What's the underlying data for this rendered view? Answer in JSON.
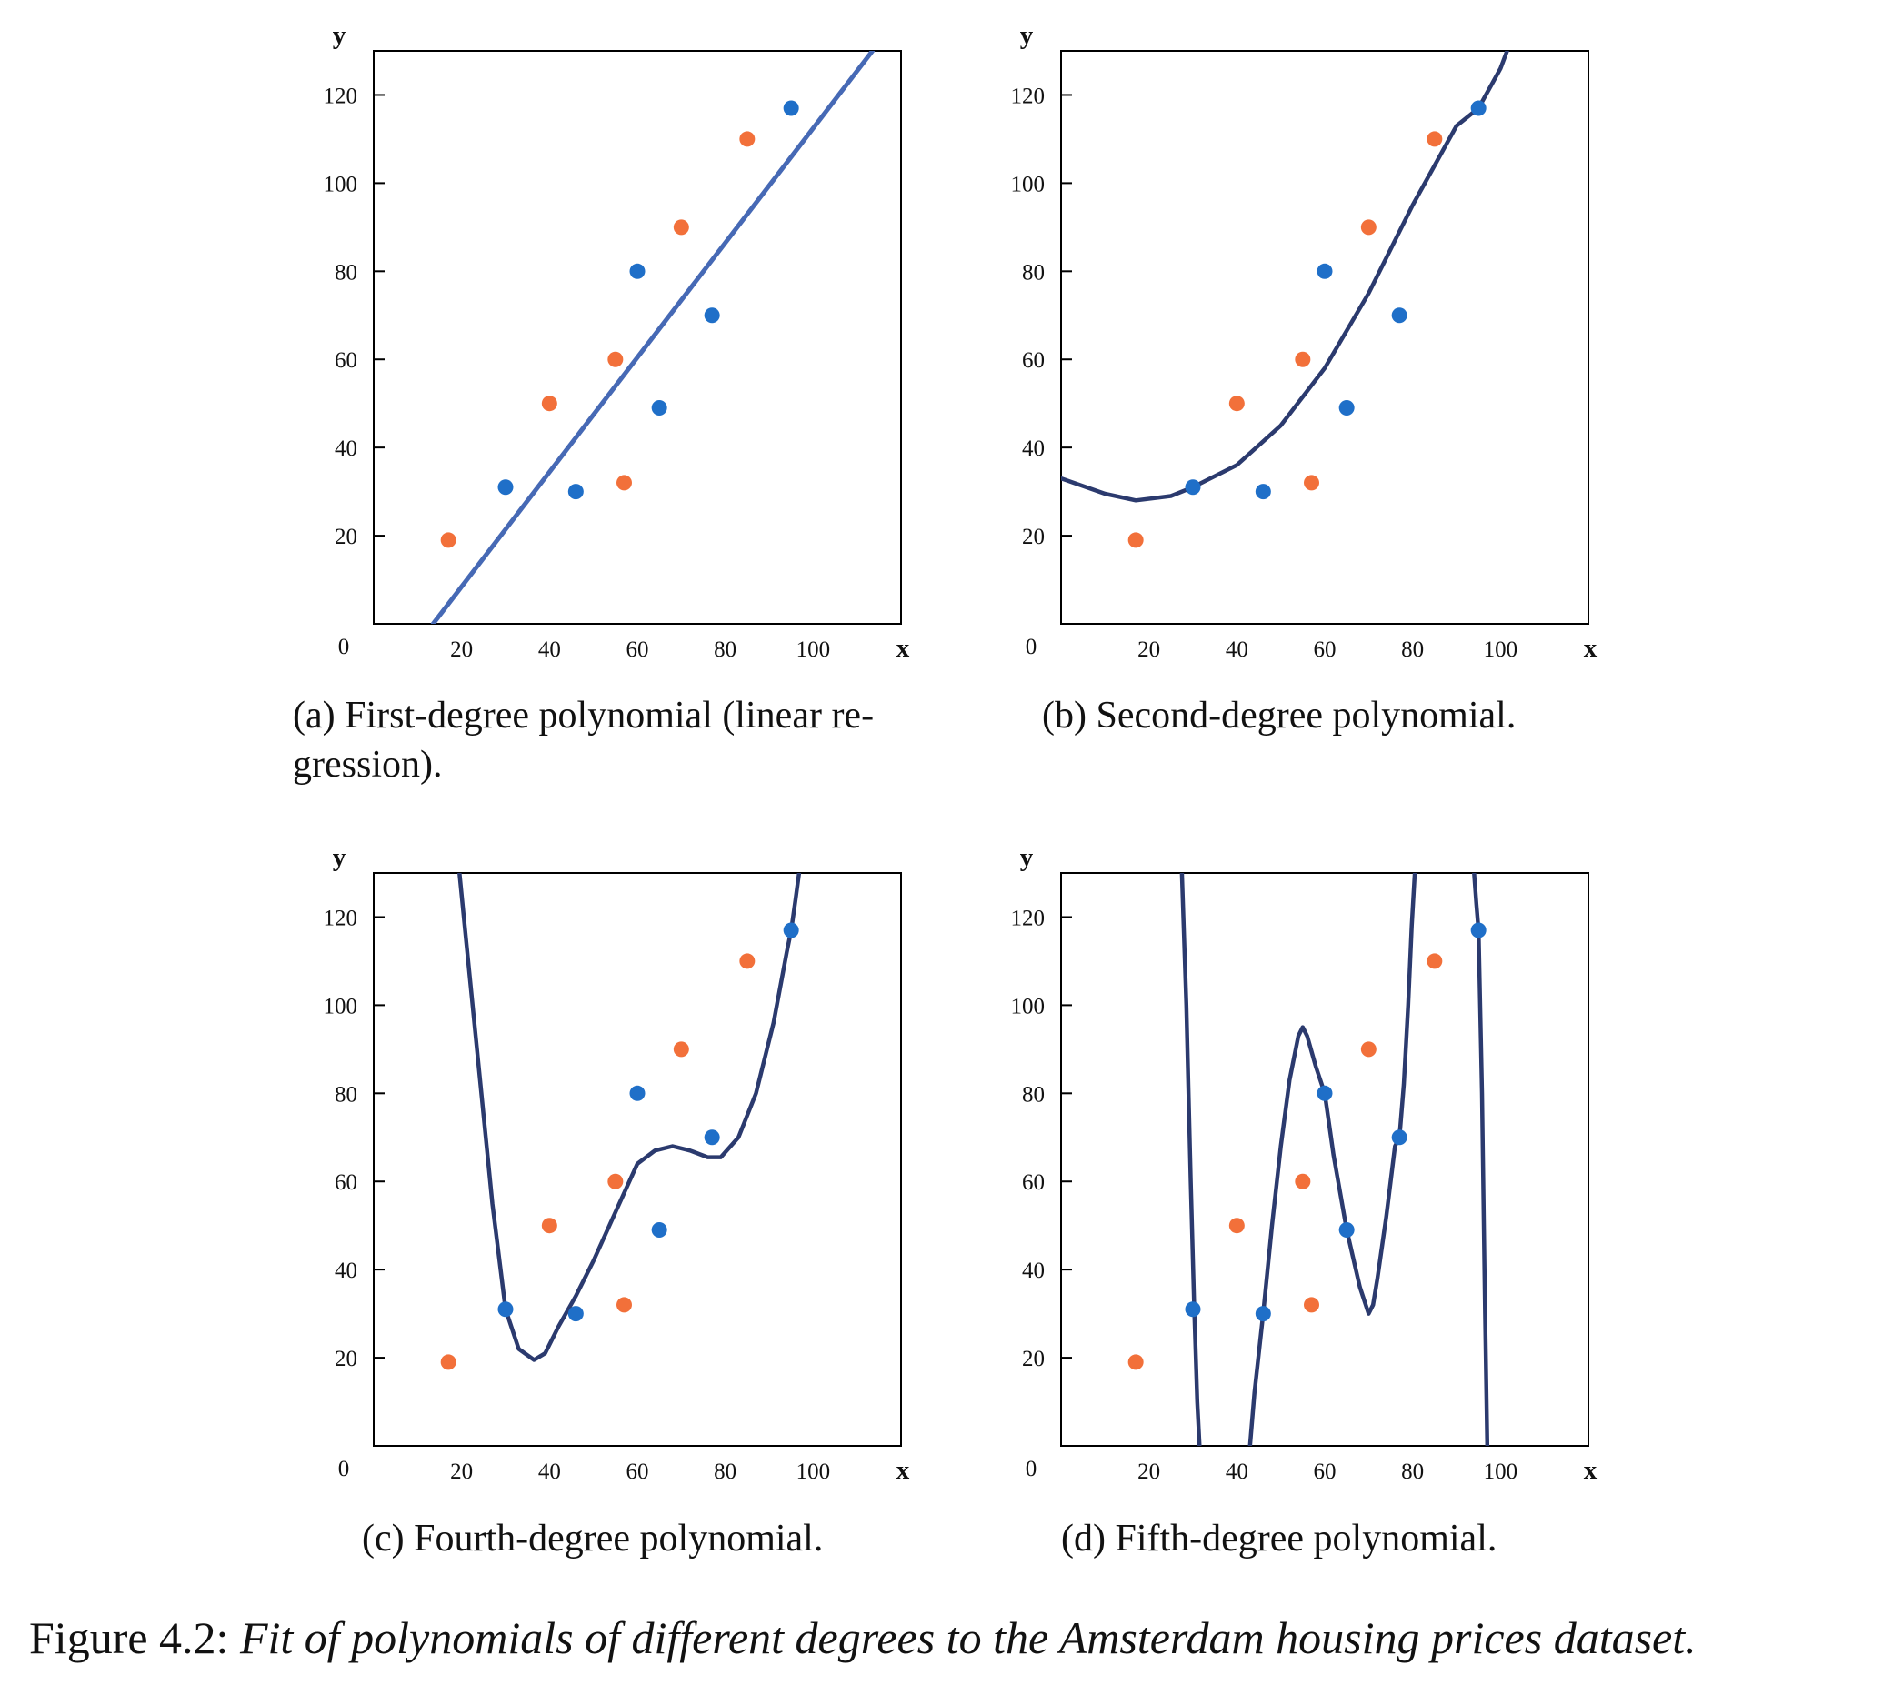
{
  "figure": {
    "label": "Figure 4.2:",
    "caption": "Fit of polynomials of different degrees to the Amsterdam housing prices dataset."
  },
  "colors": {
    "train": "#1f6fc8",
    "test": "#f2703a",
    "line_linear": "#4669b5",
    "line_poly": "#2b3a6e"
  },
  "chart_data": [
    {
      "type": "scatter",
      "caption": "(a) First-degree polynomial (linear regression).",
      "caption_lines": [
        "(a) First-degree polynomial (linear re-",
        "gression)."
      ],
      "xlabel": "x",
      "ylabel": "y",
      "origin_label": "0",
      "xlim": [
        0,
        120
      ],
      "ylim": [
        0,
        130
      ],
      "xticks": [
        20,
        40,
        60,
        80,
        100
      ],
      "yticks": [
        20,
        40,
        60,
        80,
        100,
        120
      ],
      "grid": false,
      "series": [
        {
          "x": [
            30,
            46,
            60,
            65,
            77,
            95
          ],
          "y": [
            31,
            30,
            80,
            49,
            70,
            117
          ],
          "color": "#1f6fc8"
        },
        {
          "x": [
            17,
            40,
            55,
            57,
            70,
            85
          ],
          "y": [
            19,
            50,
            60,
            32,
            90,
            110
          ],
          "color": "#f2703a"
        }
      ],
      "fit": {
        "degree": 1,
        "color": "#4669b5",
        "curve": {
          "x": [
            13.5,
            113.5
          ],
          "y": [
            0,
            130
          ]
        }
      }
    },
    {
      "type": "scatter",
      "caption": "(b) Second-degree polynomial.",
      "caption_lines": [
        "(b) Second-degree polynomial."
      ],
      "xlabel": "x",
      "ylabel": "y",
      "origin_label": "0",
      "xlim": [
        0,
        120
      ],
      "ylim": [
        0,
        130
      ],
      "xticks": [
        20,
        40,
        60,
        80,
        100
      ],
      "yticks": [
        20,
        40,
        60,
        80,
        100,
        120
      ],
      "grid": false,
      "series": [
        {
          "x": [
            30,
            46,
            60,
            65,
            77,
            95
          ],
          "y": [
            31,
            30,
            80,
            49,
            70,
            117
          ],
          "color": "#1f6fc8"
        },
        {
          "x": [
            17,
            40,
            55,
            57,
            70,
            85
          ],
          "y": [
            19,
            50,
            60,
            32,
            90,
            110
          ],
          "color": "#f2703a"
        }
      ],
      "fit": {
        "degree": 2,
        "color": "#2b3a6e",
        "curve": {
          "x": [
            0,
            10,
            17,
            25,
            30,
            40,
            50,
            60,
            70,
            80,
            90,
            95,
            100,
            101.5
          ],
          "y": [
            33,
            29.5,
            28,
            29,
            31,
            36,
            45,
            58,
            75,
            95,
            113,
            117,
            126,
            130
          ]
        }
      }
    },
    {
      "type": "scatter",
      "caption": "(c) Fourth-degree polynomial.",
      "caption_lines": [
        "(c) Fourth-degree polynomial."
      ],
      "xlabel": "x",
      "ylabel": "y",
      "origin_label": "0",
      "xlim": [
        0,
        120
      ],
      "ylim": [
        0,
        130
      ],
      "xticks": [
        20,
        40,
        60,
        80,
        100
      ],
      "yticks": [
        20,
        40,
        60,
        80,
        100,
        120
      ],
      "grid": false,
      "series": [
        {
          "x": [
            30,
            46,
            60,
            65,
            77,
            95
          ],
          "y": [
            31,
            30,
            80,
            49,
            70,
            117
          ],
          "color": "#1f6fc8"
        },
        {
          "x": [
            17,
            40,
            55,
            57,
            70,
            85
          ],
          "y": [
            19,
            50,
            60,
            32,
            90,
            110
          ],
          "color": "#f2703a"
        }
      ],
      "fit": {
        "degree": 4,
        "color": "#2b3a6e",
        "curve": {
          "x": [
            19.5,
            21,
            24,
            27,
            30,
            33,
            36.5,
            39,
            42,
            46,
            50,
            55,
            60,
            64,
            68,
            72,
            76,
            79,
            83,
            87,
            91,
            94,
            95,
            96,
            96.8
          ],
          "y": [
            130,
            115,
            85,
            55,
            31,
            22,
            19.5,
            21,
            27,
            34,
            42,
            53,
            64,
            67,
            68,
            67,
            65.5,
            65.5,
            70,
            80,
            96,
            112,
            117,
            124,
            130
          ]
        }
      }
    },
    {
      "type": "scatter",
      "caption": "(d) Fifth-degree polynomial.",
      "caption_lines": [
        "(d) Fifth-degree polynomial."
      ],
      "xlabel": "x",
      "ylabel": "y",
      "origin_label": "0",
      "xlim": [
        0,
        120
      ],
      "ylim": [
        0,
        130
      ],
      "xticks": [
        20,
        40,
        60,
        80,
        100
      ],
      "yticks": [
        20,
        40,
        60,
        80,
        100,
        120
      ],
      "grid": false,
      "series": [
        {
          "x": [
            30,
            46,
            60,
            65,
            77,
            95
          ],
          "y": [
            31,
            30,
            80,
            49,
            70,
            117
          ],
          "color": "#1f6fc8"
        },
        {
          "x": [
            17,
            40,
            55,
            57,
            70,
            85
          ],
          "y": [
            19,
            50,
            60,
            32,
            90,
            110
          ],
          "color": "#f2703a"
        }
      ],
      "fit": {
        "degree": 5,
        "color": "#2b3a6e",
        "curve_segments": [
          {
            "x": [
              27.5,
              28.5,
              29.5,
              30.3,
              31,
              31.5
            ],
            "y": [
              130,
              100,
              60,
              31,
              10,
              0
            ]
          },
          {
            "x": [
              43,
              44,
              46,
              48,
              50,
              52,
              54,
              55,
              56,
              58,
              60,
              62,
              65,
              68,
              70,
              71,
              72,
              74,
              76,
              77,
              78,
              79,
              79.8,
              80.5
            ],
            "y": [
              0,
              12,
              30,
              50,
              68,
              83,
              93,
              95,
              93,
              86,
              80,
              66,
              49,
              36,
              30,
              32,
              38,
              52,
              68,
              70,
              82,
              100,
              118,
              130
            ]
          },
          {
            "x": [
              94,
              94.5,
              95,
              95.8,
              96.5,
              97
            ],
            "y": [
              130,
              123,
              117,
              80,
              30,
              0
            ]
          }
        ]
      }
    }
  ]
}
